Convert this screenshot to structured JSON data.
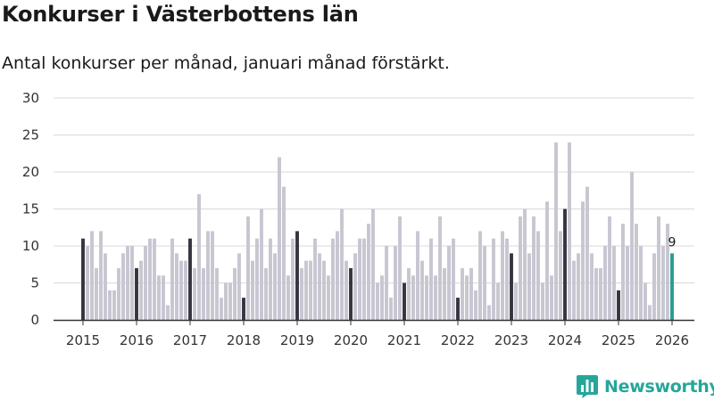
{
  "header": {
    "title": "Konkurser i Västerbottens län",
    "subtitle": "Antal konkurser per månad, januari månad förstärkt."
  },
  "brand": {
    "name": "Newsworthy"
  },
  "colors": {
    "bar": "#c7c6d1",
    "january": "#36343f",
    "latest": "#2a9d8f",
    "grid": "#d9d9d9",
    "axis": "#333333",
    "brand": "#26a69a"
  },
  "chart_data": {
    "type": "bar",
    "title": "Konkurser i Västerbottens län",
    "subtitle": "Antal konkurser per månad, januari månad förstärkt.",
    "xlabel": "",
    "ylabel": "",
    "ylim": [
      0,
      30
    ],
    "yticks": [
      "0",
      "5",
      "10",
      "15",
      "20",
      "25",
      "30"
    ],
    "xticks": [
      "2015",
      "2016",
      "2017",
      "2018",
      "2019",
      "2020",
      "2021",
      "2022",
      "2023",
      "2024",
      "2025",
      "2026"
    ],
    "start": "2015-01",
    "grid": true,
    "highlight": "January bars darker, latest month teal with value label",
    "latest_label": "9",
    "values": [
      11,
      10,
      12,
      7,
      12,
      9,
      4,
      4,
      7,
      9,
      10,
      10,
      7,
      8,
      10,
      11,
      11,
      6,
      6,
      2,
      11,
      9,
      8,
      8,
      11,
      7,
      17,
      7,
      12,
      12,
      7,
      3,
      5,
      5,
      7,
      9,
      3,
      14,
      8,
      11,
      15,
      7,
      11,
      9,
      22,
      18,
      6,
      11,
      12,
      7,
      8,
      8,
      11,
      9,
      8,
      6,
      11,
      12,
      15,
      8,
      7,
      9,
      11,
      11,
      13,
      15,
      5,
      6,
      10,
      3,
      10,
      14,
      5,
      7,
      6,
      12,
      8,
      6,
      11,
      6,
      14,
      7,
      10,
      11,
      3,
      7,
      6,
      7,
      4,
      12,
      10,
      2,
      11,
      5,
      12,
      11,
      9,
      5,
      14,
      15,
      9,
      14,
      12,
      5,
      16,
      6,
      24,
      12,
      15,
      24,
      8,
      9,
      16,
      18,
      9,
      7,
      7,
      10,
      14,
      10,
      4,
      13,
      10,
      20,
      13,
      10,
      5,
      2,
      9,
      14,
      10,
      13,
      9
    ]
  }
}
